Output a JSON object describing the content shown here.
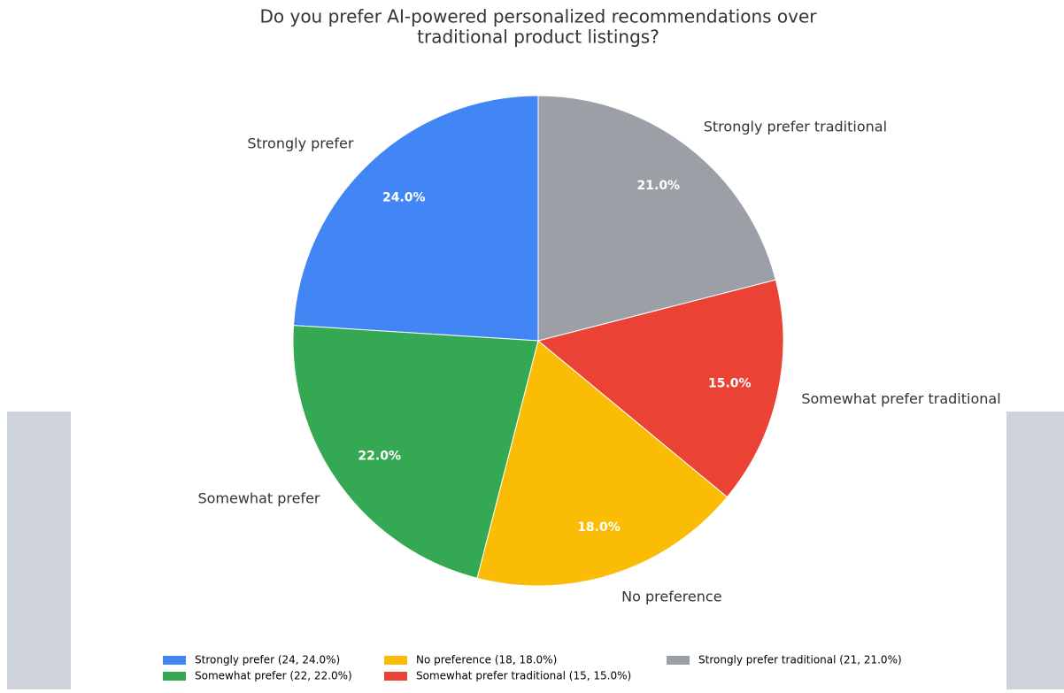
{
  "chart_data": {
    "type": "pie",
    "title": [
      "Do you prefer AI-powered personalized recommendations over",
      "traditional product listings?"
    ],
    "categories": [
      "Strongly prefer",
      "Somewhat prefer",
      "No preference",
      "Somewhat prefer traditional",
      "Strongly prefer traditional"
    ],
    "values": [
      24,
      22,
      18,
      15,
      21
    ],
    "value_labels": [
      "24.0%",
      "22.0%",
      "18.0%",
      "15.0%",
      "21.0%"
    ],
    "colors": [
      "#4285F4",
      "#34A853",
      "#FBBC05",
      "#EA4335",
      "#9AA0A6"
    ],
    "legend_labels": [
      "Strongly prefer (24, 24.0%)",
      "Somewhat prefer (22, 22.0%)",
      "No preference (18, 18.0%)",
      "Somewhat prefer traditional (15, 15.0%)",
      "Strongly prefer traditional (21, 21.0%)"
    ],
    "start_angle": 90,
    "direction": "counterclockwise"
  }
}
